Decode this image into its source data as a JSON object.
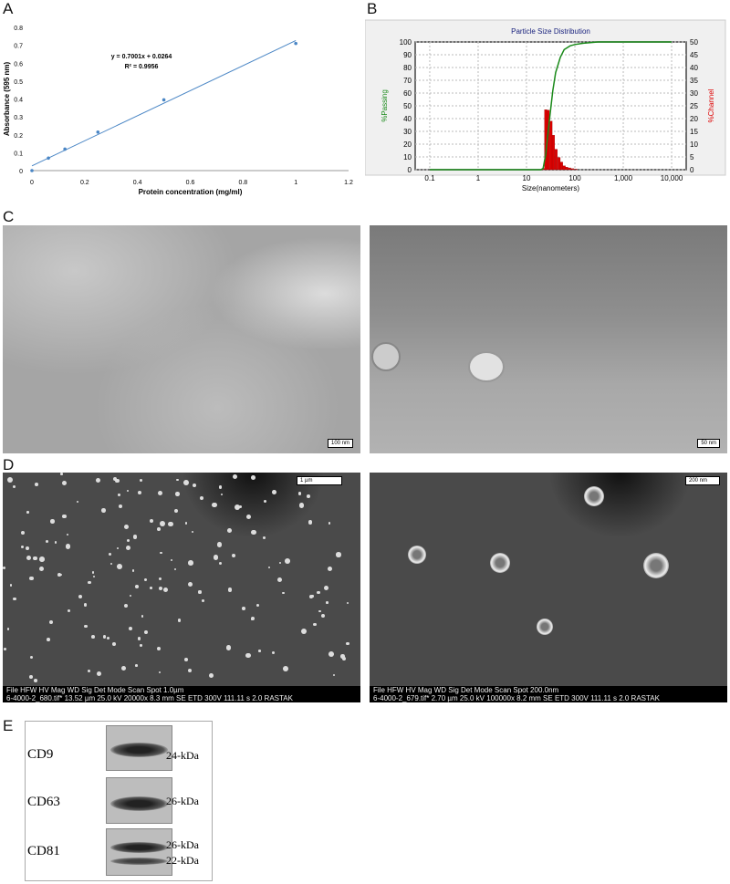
{
  "panels": {
    "A": "A",
    "B": "B",
    "C": "C",
    "D": "D",
    "E": "E"
  },
  "chart_data": [
    {
      "type": "scatter",
      "title": "",
      "xlabel": "Protein concentration (mg/ml)",
      "ylabel": "Absorbance (595 nm)",
      "xlim": [
        0,
        1.2
      ],
      "ylim": [
        0,
        0.8
      ],
      "xticks": [
        "0",
        "0.2",
        "0.4",
        "0.6",
        "0.8",
        "1",
        "1.2"
      ],
      "yticks": [
        "0",
        "0.1",
        "0.2",
        "0.3",
        "0.4",
        "0.5",
        "0.6",
        "0.7",
        "0.8"
      ],
      "x": [
        0,
        0.0625,
        0.125,
        0.25,
        0.5,
        1.0
      ],
      "y": [
        0,
        0.07,
        0.12,
        0.215,
        0.395,
        0.71
      ],
      "trendline": {
        "slope": 0.7001,
        "intercept": 0.0264,
        "equation": "y = 0.7001x + 0.0264",
        "r2": "R² = 0.9956"
      },
      "colors": {
        "series": "#4a86c5"
      }
    },
    {
      "type": "bar",
      "title": "Particle Size Distribution",
      "xlabel": "Size(nanometers)",
      "ylabel": "%Passing",
      "ylabel_right": "%Channel",
      "x_scale": "log",
      "xlim": [
        0.05,
        20000
      ],
      "ylim": [
        0,
        100
      ],
      "ylim_right": [
        0,
        50
      ],
      "xticks": [
        "0.1",
        "1",
        "10",
        "100",
        "1,000",
        "10,000"
      ],
      "yticks": [
        "0",
        "10",
        "20",
        "30",
        "40",
        "50",
        "60",
        "70",
        "80",
        "90",
        "100"
      ],
      "yticks_right": [
        "0",
        "5",
        "10",
        "15",
        "20",
        "25",
        "30",
        "35",
        "40",
        "45",
        "50"
      ],
      "histogram": {
        "size_nm": [
          22,
          25,
          28,
          32,
          36,
          41,
          47,
          53,
          60,
          68,
          78,
          90,
          105
        ],
        "channel_pct": [
          0.5,
          23.5,
          23.3,
          19,
          13.5,
          8,
          4.8,
          3,
          1.5,
          1,
          0.7,
          0.4,
          0.2
        ]
      },
      "cumulative": {
        "size_nm": [
          0.1,
          1,
          20,
          22,
          25,
          30,
          35,
          40,
          50,
          60,
          80,
          100,
          150,
          300,
          10000
        ],
        "passing_pct": [
          0,
          0,
          0,
          1,
          12,
          40,
          62,
          76,
          88,
          94,
          97,
          98,
          99,
          100,
          100
        ]
      },
      "colors": {
        "passing": "#1a8a1a",
        "channel": "#dd0000",
        "title": "#1a237e"
      }
    }
  ],
  "C": {
    "left_scale": "100 nm",
    "right_scale": "50 nm"
  },
  "D": {
    "left_scale": "1 µm",
    "right_scale": "200 nm",
    "left_info": {
      "header": "File HFW HV Mag WD Sig Det Mode Scan Spot 1.0µm",
      "values": "6-4000-2_680.tif* 13.52 µm 25.0 kV 20000x 8.3 mm SE ETD 300V 111.11 s 2.0 RASTAK"
    },
    "right_info": {
      "header": "File HFW HV Mag WD Sig Det Mode Scan Spot 200.0nm",
      "values": "6-4000-2_679.tif* 2.70 µm 25.0 kV 100000x 8.2 mm SE ETD 300V 111.11 s 2.0 RASTAK"
    }
  },
  "E": {
    "rows": [
      {
        "marker": "CD9",
        "sizes": [
          "24-kDa"
        ]
      },
      {
        "marker": "CD63",
        "sizes": [
          "26-kDa"
        ]
      },
      {
        "marker": "CD81",
        "sizes": [
          "26-kDa",
          "22-kDa"
        ]
      }
    ]
  }
}
